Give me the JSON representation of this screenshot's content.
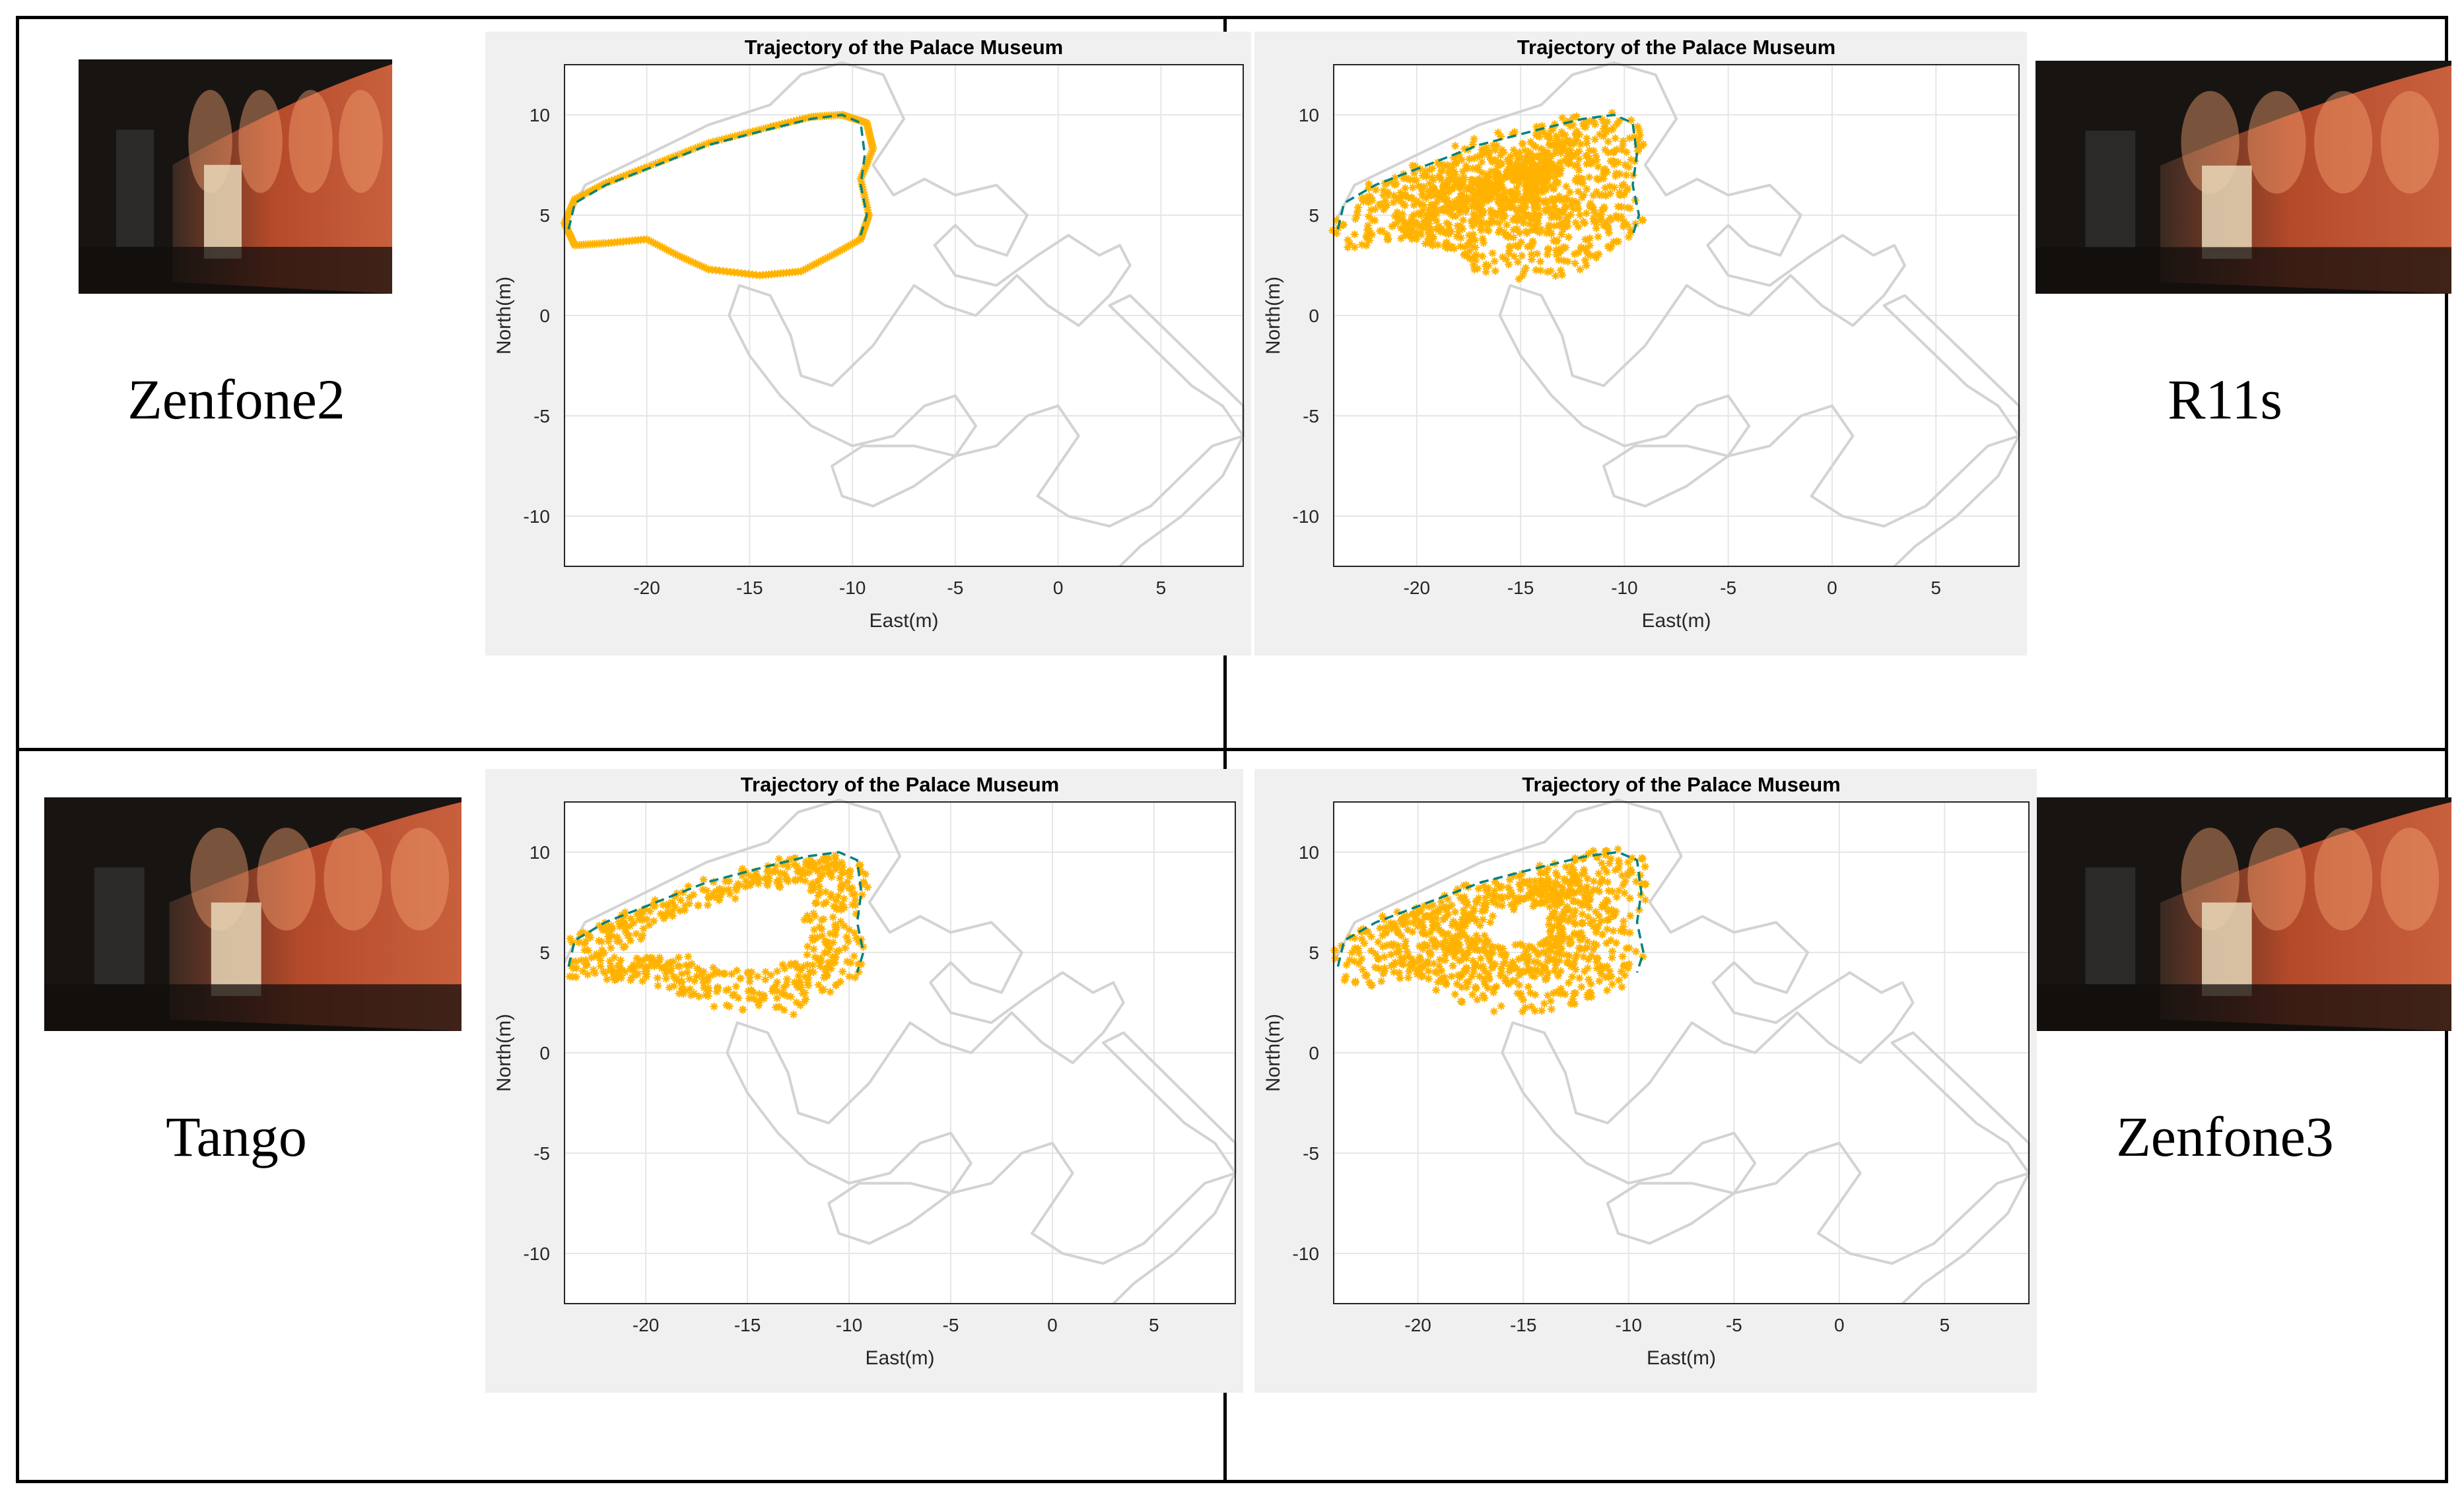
{
  "colors": {
    "path": "#d3d3d3",
    "estimate": "#ffb300",
    "truth": "#00827f",
    "grid": "#e6e6e6",
    "axis": "#262626"
  },
  "photos": [
    {
      "alt_icon": "museum-exhibit-photo"
    },
    {
      "alt_icon": "museum-exhibit-photo"
    },
    {
      "alt_icon": "museum-exhibit-photo"
    },
    {
      "alt_icon": "museum-exhibit-photo"
    }
  ],
  "labels": {
    "zenfone2": "Zenfone2",
    "r11s": "R11s",
    "tango": "Tango",
    "zenfone3": "Zenfone3"
  },
  "chart_data": [
    {
      "device": "Zenfone2",
      "type": "scatter",
      "title": "Trajectory of the Palace Museum",
      "xlabel": "East(m)",
      "ylabel": "North(m)",
      "xlim": [
        -24,
        9
      ],
      "ylim": [
        -12.5,
        12.5
      ],
      "xticks": [
        -20,
        -15,
        -10,
        -5,
        0,
        5
      ],
      "yticks": [
        10,
        5,
        0,
        -5,
        -10
      ],
      "grid": true,
      "spread": 0.0
    },
    {
      "device": "R11s",
      "type": "scatter",
      "title": "Trajectory of the Palace Museum",
      "xlabel": "East(m)",
      "ylabel": "North(m)",
      "xlim": [
        -24,
        9
      ],
      "ylim": [
        -12.5,
        12.5
      ],
      "xticks": [
        -20,
        -15,
        -10,
        -5,
        0,
        5
      ],
      "yticks": [
        10,
        5,
        0,
        -5,
        -10
      ],
      "grid": true,
      "spread": 1.0
    },
    {
      "device": "Tango",
      "type": "scatter",
      "title": "Trajectory of the Palace Museum",
      "xlabel": "East(m)",
      "ylabel": "North(m)",
      "xlim": [
        -24,
        9
      ],
      "ylim": [
        -12.5,
        12.5
      ],
      "xticks": [
        -20,
        -15,
        -10,
        -5,
        0,
        5
      ],
      "yticks": [
        10,
        5,
        0,
        -5,
        -10
      ],
      "grid": true,
      "spread": 0.45
    },
    {
      "device": "Zenfone3",
      "type": "scatter",
      "title": "Trajectory of the Palace Museum",
      "xlabel": "East(m)",
      "ylabel": "North(m)",
      "xlim": [
        -24,
        9
      ],
      "ylim": [
        -12.5,
        12.5
      ],
      "xticks": [
        -20,
        -15,
        -10,
        -5,
        0,
        5
      ],
      "yticks": [
        10,
        5,
        0,
        -5,
        -10
      ],
      "grid": true,
      "spread": 0.8
    }
  ],
  "reference_path": [
    [
      -24,
      4.5
    ],
    [
      -23,
      6.5
    ],
    [
      -20,
      8
    ],
    [
      -17,
      9.5
    ],
    [
      -14,
      10.5
    ],
    [
      -12.5,
      12
    ],
    [
      -10.5,
      12.6
    ],
    [
      -8.5,
      12
    ],
    [
      -7.5,
      9.8
    ],
    [
      -9,
      7.5
    ],
    [
      -8,
      6
    ],
    [
      -6.5,
      6.8
    ],
    [
      -5,
      6
    ],
    [
      -3,
      6.5
    ],
    [
      -1.5,
      5
    ],
    [
      -2.5,
      3
    ],
    [
      -4,
      3.5
    ],
    [
      -5,
      4.5
    ],
    [
      -6,
      3.5
    ],
    [
      -5,
      2
    ],
    [
      -3,
      1.5
    ],
    [
      -1,
      3
    ],
    [
      0.5,
      4
    ],
    [
      2,
      3
    ],
    [
      3,
      3.5
    ],
    [
      3.5,
      2.5
    ],
    [
      2.5,
      1
    ],
    [
      1,
      -0.5
    ],
    [
      -0.5,
      0.5
    ],
    [
      -2,
      2
    ],
    [
      -3,
      1
    ],
    [
      -4,
      0
    ],
    [
      -5.5,
      0.5
    ],
    [
      -7,
      1.5
    ],
    [
      -8,
      0
    ],
    [
      -9,
      -1.5
    ],
    [
      -10,
      -2.5
    ],
    [
      -11,
      -3.5
    ],
    [
      -12.5,
      -3
    ],
    [
      -13,
      -1
    ],
    [
      -14,
      1
    ],
    [
      -15.5,
      1.5
    ],
    [
      -16,
      0
    ],
    [
      -15,
      -2
    ],
    [
      -13.5,
      -4
    ],
    [
      -12,
      -5.5
    ],
    [
      -10,
      -6.5
    ],
    [
      -8,
      -6
    ],
    [
      -6.5,
      -4.5
    ],
    [
      -5,
      -4
    ],
    [
      -4,
      -5.5
    ],
    [
      -5,
      -7
    ],
    [
      -7,
      -8.5
    ],
    [
      -9,
      -9.5
    ],
    [
      -10.5,
      -9
    ],
    [
      -11,
      -7.5
    ],
    [
      -9.5,
      -6.5
    ],
    [
      -7,
      -6.5
    ],
    [
      -5,
      -7
    ],
    [
      -3,
      -6.5
    ],
    [
      -1.5,
      -5
    ],
    [
      0,
      -4.5
    ],
    [
      1,
      -6
    ],
    [
      0,
      -7.5
    ],
    [
      -1,
      -9
    ],
    [
      0.5,
      -10
    ],
    [
      2.5,
      -10.5
    ],
    [
      4.5,
      -9.5
    ],
    [
      6,
      -8
    ],
    [
      7.5,
      -6.5
    ],
    [
      9,
      -6
    ],
    [
      9,
      -4.5
    ],
    [
      7,
      -2.5
    ],
    [
      5,
      -0.5
    ],
    [
      3.5,
      1
    ],
    [
      2.5,
      0.5
    ],
    [
      3.5,
      -0.5
    ],
    [
      5,
      -2
    ],
    [
      6.5,
      -3.5
    ],
    [
      8,
      -4.5
    ],
    [
      9,
      -6
    ],
    [
      8,
      -8
    ],
    [
      6,
      -10
    ],
    [
      4,
      -11.5
    ],
    [
      3,
      -12.5
    ]
  ],
  "truth_path": [
    [
      -23.8,
      4.3
    ],
    [
      -23.5,
      5.6
    ],
    [
      -22,
      6.5
    ],
    [
      -20,
      7.3
    ],
    [
      -17,
      8.5
    ],
    [
      -14,
      9.3
    ],
    [
      -12,
      9.8
    ],
    [
      -10.5,
      10
    ],
    [
      -9.6,
      9.6
    ],
    [
      -9.4,
      8
    ],
    [
      -9.6,
      6.5
    ],
    [
      -9.3,
      5
    ],
    [
      -9.6,
      4
    ]
  ],
  "estimate_path": [
    [
      -24,
      4.6
    ],
    [
      -23.5,
      5.8
    ],
    [
      -22,
      6.6
    ],
    [
      -20,
      7.4
    ],
    [
      -17,
      8.6
    ],
    [
      -14,
      9.4
    ],
    [
      -12,
      9.9
    ],
    [
      -10.5,
      10
    ],
    [
      -9.3,
      9.6
    ],
    [
      -9,
      8.3
    ],
    [
      -9.6,
      6.8
    ],
    [
      -9.2,
      5
    ],
    [
      -9.6,
      3.8
    ],
    [
      -11,
      3
    ],
    [
      -12.5,
      2.2
    ],
    [
      -14.5,
      2
    ],
    [
      -17,
      2.3
    ],
    [
      -18.5,
      3
    ],
    [
      -20,
      3.8
    ],
    [
      -22,
      3.6
    ],
    [
      -23.5,
      3.5
    ],
    [
      -24,
      4.6
    ]
  ]
}
